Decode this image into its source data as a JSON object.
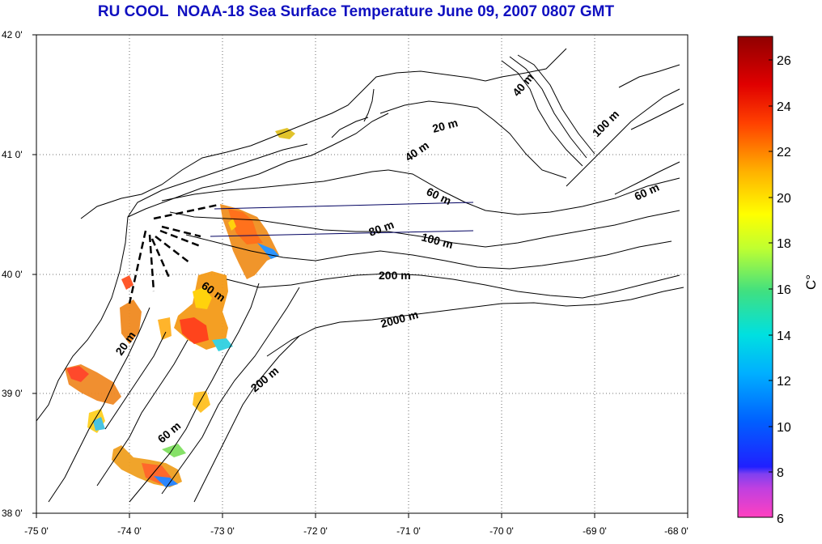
{
  "title": "RU COOL  NOAA-18 Sea Surface Temperature June 09, 2007 0807 GMT",
  "map": {
    "lon_range": [
      -75,
      -68
    ],
    "lat_range": [
      38,
      42
    ],
    "x_ticks": [
      "-75 0'",
      "-74 0'",
      "-73 0'",
      "-72 0'",
      "-71 0'",
      "-70 0'",
      "-69 0'",
      "-68 0'"
    ],
    "y_ticks": [
      "42 0'",
      "41 0'",
      "40 0'",
      "39 0'",
      "38 0'"
    ],
    "grid": "dotted",
    "colors": {
      "land_outline": "#000000",
      "ctd_lines": "#000060",
      "background": "#ffffff"
    }
  },
  "depth_labels": [
    {
      "text": "40 m"
    },
    {
      "text": "20 m"
    },
    {
      "text": "40 m"
    },
    {
      "text": "100 m"
    },
    {
      "text": "60 m"
    },
    {
      "text": "60 m"
    },
    {
      "text": "80 m"
    },
    {
      "text": "100 m"
    },
    {
      "text": "200 m"
    },
    {
      "text": "60 m"
    },
    {
      "text": "2000 m"
    },
    {
      "text": "20 m"
    },
    {
      "text": "200 m"
    },
    {
      "text": "60 m"
    }
  ],
  "colorbar": {
    "min": 6,
    "max": 27,
    "ticks": [
      "26",
      "24",
      "22",
      "20",
      "18",
      "16",
      "14",
      "12",
      "10",
      "8",
      "6"
    ],
    "unit": "C°",
    "stops": [
      "#ff40c0",
      "#b040e0",
      "#2020ff",
      "#0090ff",
      "#00e0e0",
      "#40e080",
      "#c0ff30",
      "#ffff00",
      "#ffb000",
      "#ff4000",
      "#e00000",
      "#900000"
    ]
  }
}
